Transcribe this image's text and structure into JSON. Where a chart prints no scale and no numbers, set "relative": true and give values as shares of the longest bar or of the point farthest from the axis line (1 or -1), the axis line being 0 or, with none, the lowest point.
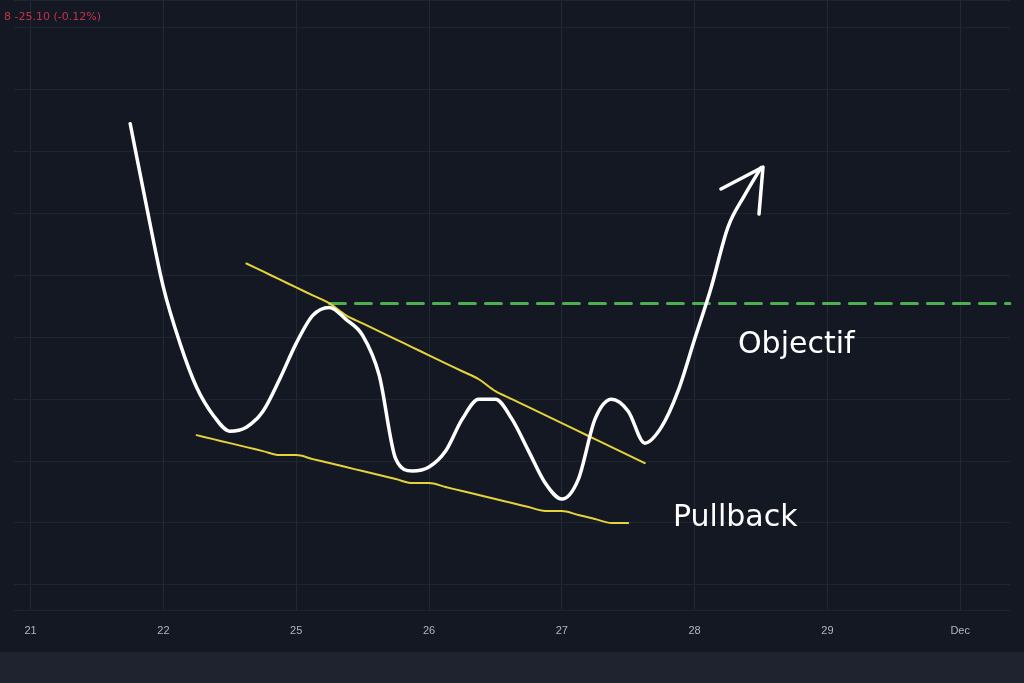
{
  "chart_data": {
    "type": "line",
    "relative": true,
    "grid": true,
    "legend": false,
    "marker": "none",
    "categories": [
      null,
      "21",
      null,
      null,
      null,
      null,
      null,
      null,
      null,
      "22",
      null,
      null,
      null,
      null,
      null,
      null,
      null,
      "25",
      null,
      null,
      null,
      null,
      null,
      null,
      null,
      "26",
      null,
      null,
      null,
      null,
      null,
      null,
      null,
      "27",
      null,
      null,
      null,
      null,
      null,
      null,
      null,
      "28",
      null,
      null,
      null,
      null,
      null,
      null,
      null,
      "29",
      null,
      null,
      null,
      null,
      null,
      null,
      null,
      "Dec",
      null,
      null,
      null
    ],
    "series": [
      {
        "color": "#ffffff",
        "line_style": "solid",
        "values": [
          null,
          null,
          null,
          null,
          null,
          null,
          null,
          1.0,
          0.79,
          0.59,
          0.45,
          0.34,
          0.27,
          0.23,
          0.24,
          0.28,
          0.36,
          0.45,
          0.52,
          0.54,
          0.51,
          0.47,
          0.37,
          0.16,
          0.13,
          0.14,
          0.18,
          0.26,
          0.31,
          0.31,
          0.26,
          0.18,
          0.1,
          0.06,
          0.11,
          0.26,
          0.31,
          0.28,
          0.2,
          0.24,
          0.33,
          0.46,
          0.59,
          0.74,
          0.82,
          0.89,
          null,
          null,
          null,
          null,
          null,
          null,
          null,
          null,
          null,
          null,
          null,
          null,
          null,
          null,
          null
        ]
      },
      {
        "color": "#e6d33a",
        "line_style": "solid",
        "values": [
          null,
          null,
          null,
          null,
          null,
          null,
          null,
          null,
          null,
          null,
          null,
          null,
          null,
          null,
          0.65,
          0.63,
          0.61,
          0.59,
          0.57,
          0.55,
          0.52,
          0.5,
          0.48,
          0.46,
          0.44,
          0.42,
          0.4,
          0.38,
          0.36,
          0.33,
          0.31,
          0.29,
          0.27,
          0.25,
          0.23,
          0.21,
          0.19,
          0.17,
          0.15,
          null,
          null,
          null,
          null,
          null,
          null,
          null,
          null,
          null,
          null,
          null,
          null,
          null,
          null,
          null,
          null,
          null,
          null,
          null,
          null,
          null,
          null
        ]
      },
      {
        "color": "#e6d33a",
        "line_style": "solid",
        "values": [
          null,
          null,
          null,
          null,
          null,
          null,
          null,
          null,
          null,
          null,
          null,
          0.22,
          0.21,
          0.2,
          0.19,
          0.18,
          0.17,
          0.17,
          0.16,
          0.15,
          0.14,
          0.13,
          0.12,
          0.11,
          0.1,
          0.1,
          0.09,
          0.08,
          0.07,
          0.06,
          0.05,
          0.04,
          0.03,
          0.03,
          0.02,
          0.01,
          0.0,
          0.0,
          null,
          null,
          null,
          null,
          null,
          null,
          null,
          null,
          null,
          null,
          null,
          null,
          null,
          null,
          null,
          null,
          null,
          null,
          null,
          null,
          null,
          null,
          null
        ]
      },
      {
        "color": "#4caf50",
        "line_style": "dashed",
        "values": [
          null,
          null,
          null,
          null,
          null,
          null,
          null,
          null,
          null,
          null,
          null,
          null,
          null,
          null,
          null,
          null,
          null,
          null,
          null,
          0.55,
          0.55,
          0.55,
          0.55,
          0.55,
          0.55,
          0.55,
          0.55,
          0.55,
          0.55,
          0.55,
          0.55,
          0.55,
          0.55,
          0.55,
          0.55,
          0.55,
          0.55,
          0.55,
          0.55,
          0.55,
          0.55,
          0.55,
          0.55,
          0.55,
          0.55,
          0.55,
          0.55,
          0.55,
          0.55,
          0.55,
          0.55,
          0.55,
          0.55,
          0.55,
          0.55,
          0.55,
          0.55,
          0.55,
          0.55,
          0.55,
          0.55
        ]
      }
    ],
    "annotations": [
      "8  -25.10 (-0.12%)",
      "Objectif",
      "Pullback"
    ]
  }
}
